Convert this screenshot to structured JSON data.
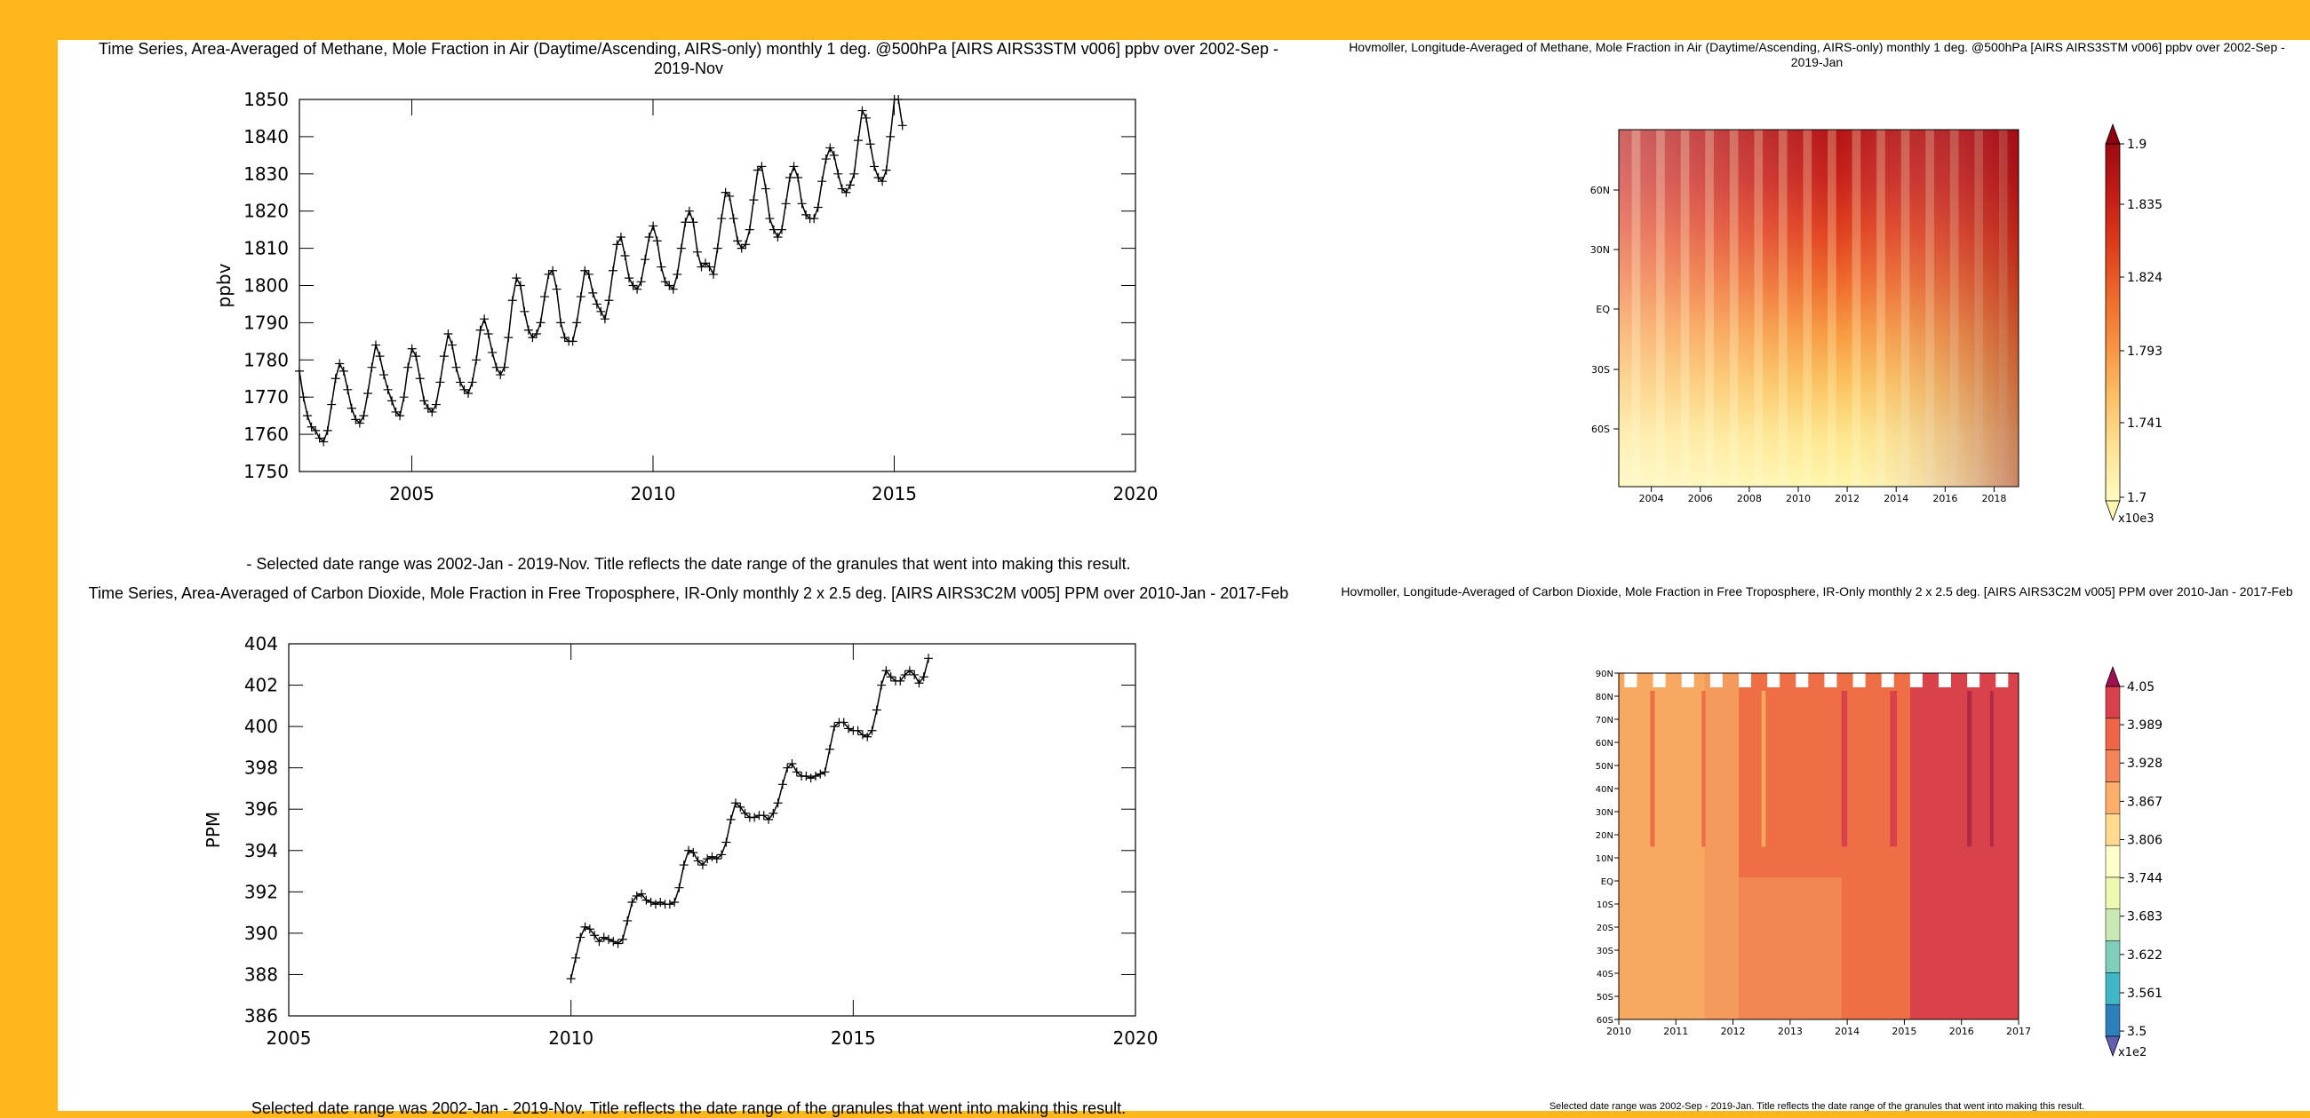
{
  "colors": {
    "page_bg": "#FFB71B",
    "panel_bg": "#FFFFFF",
    "line": "#000000"
  },
  "ch4": {
    "title": "Time Series, Area-Averaged of Methane, Mole Fraction in Air (Daytime/Ascending, AIRS-only) monthly 1 deg. @500hPa [AIRS AIRS3STM v006] ppbv over 2002-Sep - 2019-Nov",
    "caption": "- Selected date range was 2002-Jan - 2019-Nov. Title reflects the date range of the granules that went into making this result."
  },
  "co2": {
    "title": "Time Series, Area-Averaged of Carbon Dioxide, Mole Fraction in Free Troposphere, IR-Only monthly 2 x 2.5 deg. [AIRS AIRS3C2M v005] PPM over 2010-Jan - 2017-Feb",
    "caption": "Selected date range was 2002-Jan - 2019-Nov. Title reflects the date range of the granules that went into making this result."
  },
  "hov_ch4": {
    "title": "Hovmoller, Longitude-Averaged of Methane, Mole Fraction in Air (Daytime/Ascending, AIRS-only) monthly 1 deg. @500hPa [AIRS AIRS3STM v006] ppbv over 2002-Sep - 2019-Jan",
    "colorbar": {
      "labels": [
        "1.9",
        "1.835",
        "1.824",
        "1.793",
        "1.741",
        "1.7"
      ],
      "multiplier": "x10e3",
      "colors": [
        "#fff9b0",
        "#fde08a",
        "#fbbe5e",
        "#f7953e",
        "#ee6b2e",
        "#e0421f",
        "#c91e17",
        "#a00b12"
      ]
    }
  },
  "hov_co2": {
    "title": "Hovmoller, Longitude-Averaged of Carbon Dioxide, Mole Fraction in Free Troposphere, IR-Only monthly 2 x 2.5 deg. [AIRS AIRS3C2M v005] PPM over 2010-Jan - 2017-Feb",
    "caption": "Selected date range was 2002-Sep - 2019-Jan. Title reflects the date range of the granules that went into making this result.",
    "colorbar": {
      "labels": [
        "4.05",
        "3.989",
        "3.928",
        "3.867",
        "3.806",
        "3.744",
        "3.683",
        "3.622",
        "3.561",
        "3.5"
      ],
      "multiplier": "x1e2",
      "colors": [
        "#2c7fb8",
        "#41b6c4",
        "#7fcdbb",
        "#c7e9b4",
        "#edf8b1",
        "#ffffcc",
        "#fed98e",
        "#fdae6b",
        "#f4845a",
        "#ee6547",
        "#d8404c"
      ]
    }
  },
  "chart_data": [
    {
      "type": "line",
      "title": "Time Series, Area-Averaged of Methane, Mole Fraction in Air (Daytime/Ascending, AIRS-only) monthly 1 deg. @500hPa [AIRS AIRS3STM v006] ppbv over 2002-Sep - 2019-Nov",
      "xlabel": "",
      "ylabel": "ppbv",
      "xlim": [
        2002.67,
        2020
      ],
      "ylim": [
        1750,
        1850
      ],
      "xticks": [
        2005,
        2010,
        2015,
        2020
      ],
      "yticks": [
        1750,
        1760,
        1770,
        1780,
        1790,
        1800,
        1810,
        1820,
        1830,
        1840,
        1850
      ],
      "marker": "+",
      "series": [
        {
          "x_start": 2002.67,
          "x_step": 0.08333,
          "values": [
            1777,
            1770,
            1765,
            1762,
            1761,
            1759,
            1758,
            1761,
            1768,
            1775,
            1779,
            1777,
            1772,
            1767,
            1764,
            1763,
            1765,
            1771,
            1778,
            1784,
            1781,
            1776,
            1772,
            1769,
            1766,
            1765,
            1770,
            1778,
            1783,
            1781,
            1775,
            1769,
            1767,
            1766,
            1768,
            1774,
            1781,
            1787,
            1784,
            1778,
            1774,
            1772,
            1771,
            1774,
            1780,
            1788,
            1791,
            1787,
            1782,
            1778,
            1776,
            1778,
            1786,
            1796,
            1802,
            1800,
            1793,
            1788,
            1786,
            1787,
            1790,
            1797,
            1803,
            1804,
            1799,
            1790,
            1786,
            1785,
            1785,
            1790,
            1797,
            1804,
            1803,
            1798,
            1795,
            1793,
            1791,
            1796,
            1804,
            1811,
            1813,
            1808,
            1802,
            1800,
            1799,
            1801,
            1807,
            1813,
            1816,
            1812,
            1805,
            1801,
            1800,
            1799,
            1803,
            1810,
            1817,
            1820,
            1817,
            1809,
            1805,
            1806,
            1805,
            1803,
            1810,
            1818,
            1825,
            1824,
            1818,
            1812,
            1810,
            1811,
            1815,
            1823,
            1831,
            1832,
            1826,
            1818,
            1815,
            1813,
            1815,
            1822,
            1829,
            1832,
            1829,
            1822,
            1819,
            1818,
            1818,
            1821,
            1828,
            1834,
            1837,
            1835,
            1830,
            1826,
            1825,
            1827,
            1830,
            1839,
            1847,
            1845,
            1838,
            1832,
            1829,
            1828,
            1831,
            1840,
            1850,
            1850,
            1843
          ]
        }
      ]
    },
    {
      "type": "line",
      "title": "Time Series, Area-Averaged of Carbon Dioxide, Mole Fraction in Free Troposphere, IR-Only monthly 2 x 2.5 deg. [AIRS AIRS3C2M v005] PPM over 2010-Jan - 2017-Feb",
      "xlabel": "",
      "ylabel": "PPM",
      "xlim": [
        2005,
        2020
      ],
      "ylim": [
        386,
        404
      ],
      "xticks": [
        2005,
        2010,
        2015,
        2020
      ],
      "yticks": [
        386,
        388,
        390,
        392,
        394,
        396,
        398,
        400,
        402,
        404
      ],
      "marker": "+",
      "series": [
        {
          "x_start": 2010.0,
          "x_step": 0.08333,
          "values": [
            387.8,
            388.8,
            389.8,
            390.3,
            390.2,
            389.9,
            389.6,
            389.8,
            389.7,
            389.6,
            389.5,
            389.7,
            390.6,
            391.5,
            391.8,
            391.9,
            391.6,
            391.5,
            391.4,
            391.5,
            391.4,
            391.4,
            391.5,
            392.2,
            393.3,
            394.0,
            393.9,
            393.5,
            393.3,
            393.6,
            393.7,
            393.6,
            393.8,
            394.4,
            395.5,
            396.3,
            396.1,
            395.8,
            395.6,
            395.6,
            395.7,
            395.7,
            395.5,
            395.8,
            396.3,
            397.2,
            398.0,
            398.2,
            397.8,
            397.6,
            397.6,
            397.5,
            397.6,
            397.7,
            397.8,
            398.9,
            400.0,
            400.2,
            400.2,
            399.9,
            399.8,
            399.8,
            399.6,
            399.5,
            399.8,
            400.8,
            402.0,
            402.7,
            402.4,
            402.2,
            402.2,
            402.5,
            402.7,
            402.5,
            402.1,
            402.4,
            403.3
          ]
        }
      ]
    },
    {
      "type": "heatmap",
      "title": "Hovmoller, Longitude-Averaged of Methane, Mole Fraction in Air (Daytime/Ascending, AIRS-only) monthly 1 deg. @500hPa [AIRS AIRS3STM v006] ppbv over 2002-Sep - 2019-Jan",
      "x_ticks": [
        "2004",
        "2006",
        "2008",
        "2010",
        "2012",
        "2014",
        "2016",
        "2018"
      ],
      "y_ticks": [
        "60N",
        "30N",
        "EQ",
        "30S",
        "60S"
      ],
      "xlim": [
        2002.67,
        2019.0
      ],
      "color_range": [
        1700,
        1900
      ]
    },
    {
      "type": "heatmap",
      "title": "Hovmoller, Longitude-Averaged of Carbon Dioxide, Mole Fraction in Free Troposphere, IR-Only monthly 2 x 2.5 deg. [AIRS AIRS3C2M v005] PPM over 2010-Jan - 2017-Feb",
      "x_ticks": [
        "2010",
        "2011",
        "2012",
        "2013",
        "2014",
        "2015",
        "2016",
        "2017"
      ],
      "y_ticks": [
        "90N",
        "80N",
        "70N",
        "60N",
        "50N",
        "40N",
        "30N",
        "20N",
        "10N",
        "EQ",
        "10S",
        "20S",
        "30S",
        "40S",
        "50S",
        "60S"
      ],
      "xlim": [
        2010,
        2017
      ],
      "color_range": [
        350,
        405
      ]
    }
  ]
}
